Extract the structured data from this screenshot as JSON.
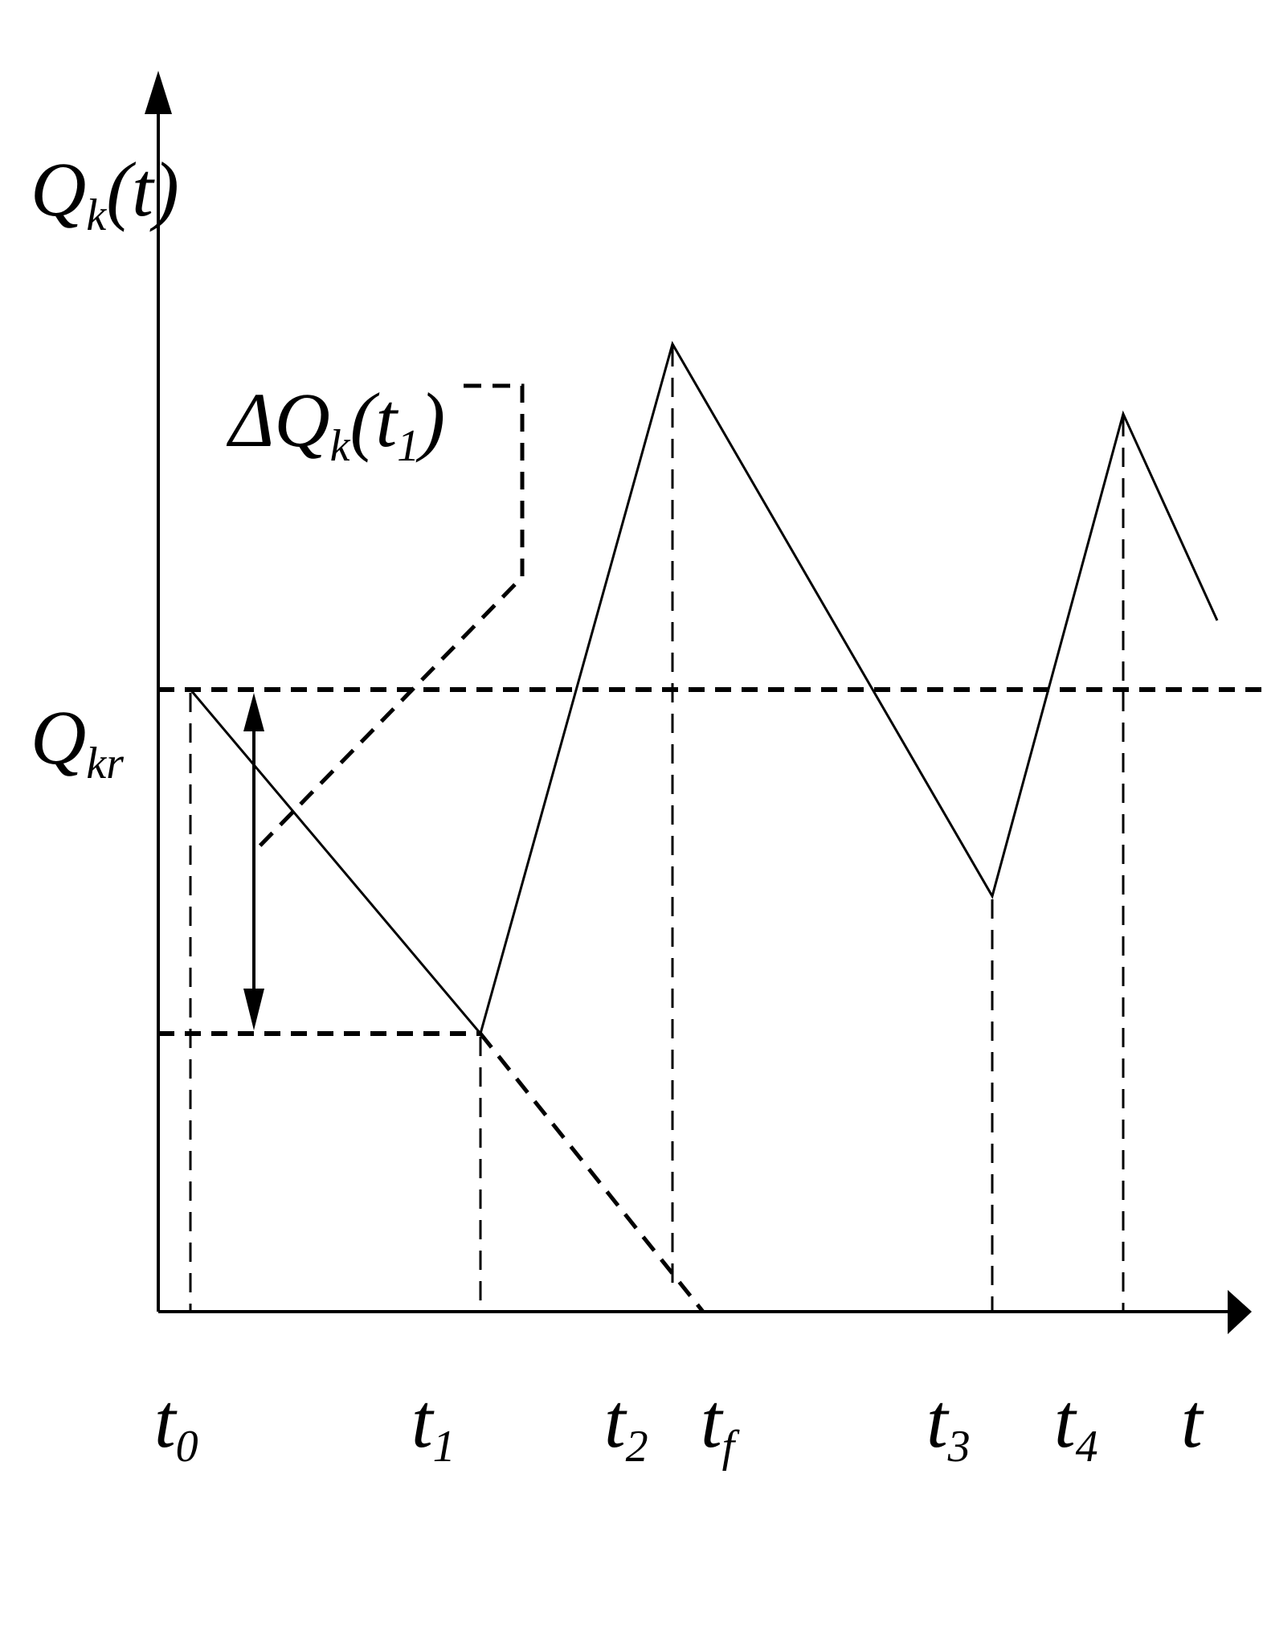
{
  "diagram": {
    "title": "",
    "y_axis": {
      "symbol": "Q",
      "subscript": "k",
      "suffix": "(t)"
    },
    "threshold": {
      "symbol": "Q",
      "subscript": "kr"
    },
    "delta": {
      "prefix": "ΔQ",
      "subscript": "k",
      "mid": "(t",
      "arg_subscript": "1",
      "close": ")"
    },
    "time_ticks": [
      {
        "base": "t",
        "sub": "0"
      },
      {
        "base": "t",
        "sub": "1"
      },
      {
        "base": "t",
        "sub": "2"
      },
      {
        "base": "t",
        "sub": "f"
      },
      {
        "base": "t",
        "sub": "3"
      },
      {
        "base": "t",
        "sub": "4"
      }
    ],
    "x_axis": {
      "symbol": "t"
    },
    "colors": {
      "ink": "#000000",
      "background": "#ffffff"
    }
  }
}
